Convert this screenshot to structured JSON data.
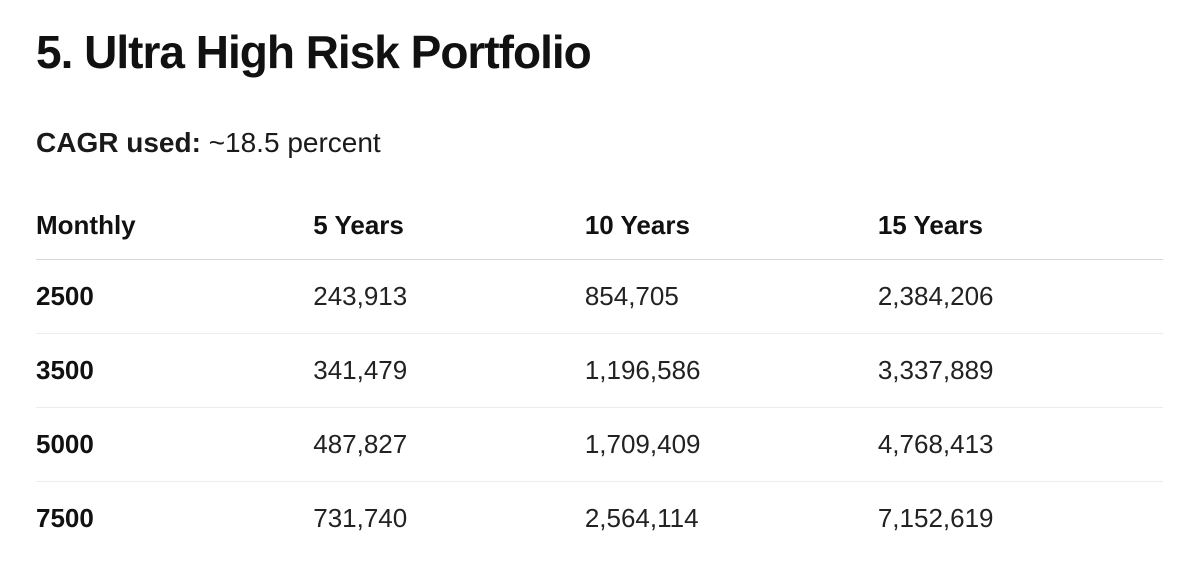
{
  "section": {
    "title": "5. Ultra High Risk Portfolio",
    "cagr_label": "CAGR used:",
    "cagr_value": "~18.5 percent"
  },
  "table": {
    "columns": [
      "Monthly",
      "5 Years",
      "10 Years",
      "15 Years"
    ],
    "rows": [
      [
        "2500",
        "243,913",
        "854,705",
        "2,384,206"
      ],
      [
        "3500",
        "341,479",
        "1,196,586",
        "3,337,889"
      ],
      [
        "5000",
        "487,827",
        "1,709,409",
        "4,768,413"
      ],
      [
        "7500",
        "731,740",
        "2,564,114",
        "7,152,619"
      ]
    ]
  },
  "colors": {
    "background": "#ffffff",
    "text": "#1a1a1a",
    "header_border": "#d8d8d8",
    "row_border": "#ececec"
  }
}
